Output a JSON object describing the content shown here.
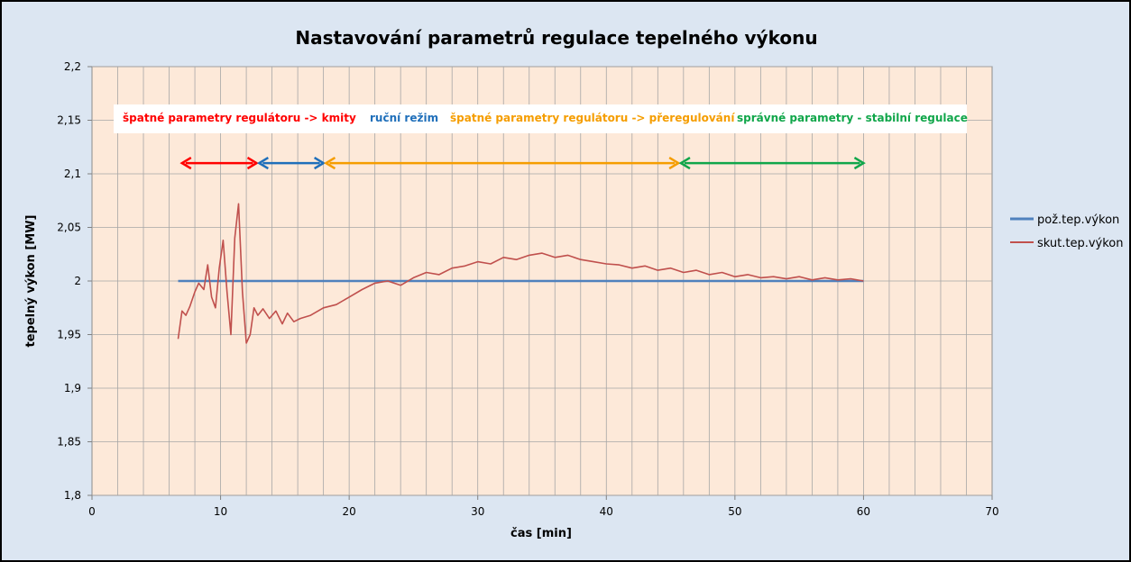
{
  "chart_data": {
    "type": "line",
    "title": "Nastavování parametrů regulace tepelného výkonu",
    "xlabel": "čas [min]",
    "ylabel": "tepelný výkon [MW]",
    "xlim": [
      0,
      70
    ],
    "ylim": [
      1.8,
      2.2
    ],
    "x_ticks": [
      0,
      10,
      20,
      30,
      40,
      50,
      60,
      70
    ],
    "y_ticks": [
      1.8,
      1.85,
      1.9,
      1.95,
      2,
      2.05,
      2.1,
      2.15,
      2.2
    ],
    "x_tick_labels": [
      "0",
      "10",
      "20",
      "30",
      "40",
      "50",
      "60",
      "70"
    ],
    "y_tick_labels": [
      "1,8",
      "1,85",
      "1,9",
      "1,95",
      "2",
      "2,05",
      "2,1",
      "2,15",
      "2,2"
    ],
    "grid": "on",
    "legend_position": "right",
    "colors": {
      "plot_bg": "#fde9d9",
      "frame_bg": "#dce6f2",
      "grid": "#a6a6a6"
    },
    "series": [
      {
        "name": "pož.tep.výkon",
        "color": "#4f81bd",
        "x": [
          6.7,
          60
        ],
        "y": [
          2.0,
          2.0
        ]
      },
      {
        "name": "skut.tep.výkon",
        "color": "#c0504d",
        "x": [
          6.7,
          7.0,
          7.3,
          7.6,
          8.0,
          8.3,
          8.7,
          9.0,
          9.3,
          9.6,
          9.9,
          10.2,
          10.5,
          10.8,
          11.1,
          11.4,
          11.7,
          12.0,
          12.3,
          12.6,
          12.9,
          13.3,
          13.8,
          14.3,
          14.8,
          15.2,
          15.7,
          16.2,
          17.0,
          18.0,
          19.0,
          20.0,
          21.0,
          22.0,
          23.0,
          24.0,
          25.0,
          26.0,
          27.0,
          28.0,
          29.0,
          30.0,
          31.0,
          32.0,
          33.0,
          34.0,
          35.0,
          36.0,
          37.0,
          38.0,
          39.0,
          40.0,
          41.0,
          42.0,
          43.0,
          44.0,
          45.0,
          46.0,
          47.0,
          48.0,
          49.0,
          50.0,
          51.0,
          52.0,
          53.0,
          54.0,
          55.0,
          56.0,
          57.0,
          58.0,
          59.0,
          60.0
        ],
        "y": [
          1.946,
          1.972,
          1.968,
          1.976,
          1.99,
          1.998,
          1.992,
          2.015,
          1.985,
          1.975,
          2.012,
          2.038,
          1.99,
          1.95,
          2.04,
          2.072,
          1.99,
          1.942,
          1.95,
          1.975,
          1.968,
          1.974,
          1.965,
          1.972,
          1.96,
          1.97,
          1.962,
          1.965,
          1.968,
          1.975,
          1.978,
          1.985,
          1.992,
          1.998,
          2.0,
          1.996,
          2.003,
          2.008,
          2.006,
          2.012,
          2.014,
          2.018,
          2.016,
          2.022,
          2.02,
          2.024,
          2.026,
          2.022,
          2.024,
          2.02,
          2.018,
          2.016,
          2.015,
          2.012,
          2.014,
          2.01,
          2.012,
          2.008,
          2.01,
          2.006,
          2.008,
          2.004,
          2.006,
          2.003,
          2.004,
          2.002,
          2.004,
          2.001,
          2.003,
          2.001,
          2.002,
          2.0
        ]
      }
    ],
    "annotations": [
      {
        "text": "špatné parametry regulátoru -> kmity",
        "color": "#ff0000",
        "arrow_x": [
          7,
          12.8
        ]
      },
      {
        "text": "ruční režim",
        "color": "#1f6fba",
        "arrow_x": [
          13,
          18
        ]
      },
      {
        "text": "špatné parametry regulátoru -> přeregulování",
        "color": "#f59d00",
        "arrow_x": [
          18.2,
          45.6
        ]
      },
      {
        "text": "správné parametry - stabilní regulace",
        "color": "#10a64a",
        "arrow_x": [
          45.8,
          60
        ]
      }
    ],
    "annotation_arrow_y": 2.11
  }
}
